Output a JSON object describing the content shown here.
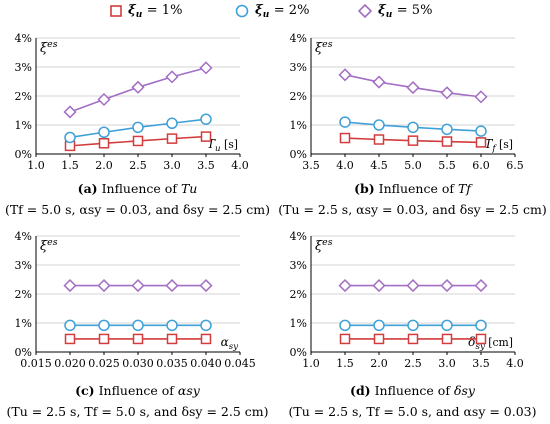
{
  "legend": [
    {
      "symbol": "ξ",
      "sub": "u",
      "label": "= 1%",
      "color": "#d23c3c",
      "marker": "square"
    },
    {
      "symbol": "ξ",
      "sub": "u",
      "label": "= 2%",
      "color": "#3fa0d8",
      "marker": "circle"
    },
    {
      "symbol": "ξ",
      "sub": "u",
      "label": "= 5%",
      "color": "#a36ec4",
      "marker": "diamond"
    }
  ],
  "chart_data": [
    {
      "type": "line",
      "ylabel": "ξes",
      "xlabel": "Tu [s]",
      "xlim": [
        1.0,
        4.0
      ],
      "xticks": [
        "1.0",
        "1.5",
        "2.0",
        "2.5",
        "3.0",
        "3.5",
        "4.0"
      ],
      "ylim": [
        0,
        4
      ],
      "yticks": [
        "0%",
        "1%",
        "2%",
        "3%",
        "4%"
      ],
      "x": [
        1.5,
        2.0,
        2.5,
        3.0,
        3.5
      ],
      "series": [
        {
          "name": "ξu = 1%",
          "values": [
            0.28,
            0.37,
            0.45,
            0.53,
            0.6
          ]
        },
        {
          "name": "ξu = 2%",
          "values": [
            0.57,
            0.75,
            0.92,
            1.06,
            1.2
          ]
        },
        {
          "name": "ξu = 5%",
          "values": [
            1.45,
            1.88,
            2.3,
            2.66,
            2.97
          ]
        }
      ],
      "caption_title": [
        "(a)",
        "Influence of",
        "Tu"
      ],
      "caption_params": "(Tf = 5.0 s,  αsy = 0.03, and  δsy = 2.5 cm)"
    },
    {
      "type": "line",
      "ylabel": "ξes",
      "xlabel": "Tf [s]",
      "xlim": [
        3.5,
        6.5
      ],
      "xticks": [
        "3.5",
        "4.0",
        "4.5",
        "5.0",
        "5.5",
        "6.0",
        "6.5"
      ],
      "ylim": [
        0,
        4
      ],
      "yticks": [
        "0%",
        "1%",
        "2%",
        "3%",
        "4%"
      ],
      "x": [
        4.0,
        4.5,
        5.0,
        5.5,
        6.0
      ],
      "series": [
        {
          "name": "ξu = 1%",
          "values": [
            0.55,
            0.5,
            0.46,
            0.43,
            0.4
          ]
        },
        {
          "name": "ξu = 2%",
          "values": [
            1.1,
            1.0,
            0.92,
            0.85,
            0.79
          ]
        },
        {
          "name": "ξu = 5%",
          "values": [
            2.73,
            2.48,
            2.29,
            2.11,
            1.97
          ]
        }
      ],
      "caption_title": [
        "(b)",
        "Influence of",
        "Tf"
      ],
      "caption_params": "(Tu = 2.5 s,  αsy = 0.03, and  δsy = 2.5 cm)"
    },
    {
      "type": "line",
      "ylabel": "ξes",
      "xlabel": "αsy",
      "xlim": [
        0.015,
        0.045
      ],
      "xticks": [
        "0.015",
        "0.020",
        "0.025",
        "0.030",
        "0.035",
        "0.040",
        "0.045"
      ],
      "ylim": [
        0,
        4
      ],
      "yticks": [
        "0%",
        "1%",
        "2%",
        "3%",
        "4%"
      ],
      "x": [
        0.02,
        0.025,
        0.03,
        0.035,
        0.04
      ],
      "series": [
        {
          "name": "ξu = 1%",
          "values": [
            0.45,
            0.45,
            0.45,
            0.45,
            0.45
          ]
        },
        {
          "name": "ξu = 2%",
          "values": [
            0.92,
            0.92,
            0.92,
            0.92,
            0.92
          ]
        },
        {
          "name": "ξu = 5%",
          "values": [
            2.29,
            2.29,
            2.29,
            2.29,
            2.29
          ]
        }
      ],
      "caption_title": [
        "(c)",
        "Influence of",
        "αsy"
      ],
      "caption_params": "(Tu = 2.5 s,  Tf = 5.0 s, and  δsy = 2.5 cm)"
    },
    {
      "type": "line",
      "ylabel": "ξes",
      "xlabel": "δsy [cm]",
      "xlim": [
        1.0,
        4.0
      ],
      "xticks": [
        "1.0",
        "1.5",
        "2.0",
        "2.5",
        "3.0",
        "3.5",
        "4.0"
      ],
      "ylim": [
        0,
        4
      ],
      "yticks": [
        "0%",
        "1%",
        "2%",
        "3%",
        "4%"
      ],
      "x": [
        1.5,
        2.0,
        2.5,
        3.0,
        3.5
      ],
      "series": [
        {
          "name": "ξu = 1%",
          "values": [
            0.45,
            0.45,
            0.45,
            0.45,
            0.45
          ]
        },
        {
          "name": "ξu = 2%",
          "values": [
            0.92,
            0.92,
            0.92,
            0.92,
            0.92
          ]
        },
        {
          "name": "ξu = 5%",
          "values": [
            2.29,
            2.29,
            2.29,
            2.29,
            2.29
          ]
        }
      ],
      "caption_title": [
        "(d)",
        "Influence of",
        "δsy"
      ],
      "caption_params": "(Tu = 2.5 s,  Tf = 5.0 s, and  αsy = 0.03)"
    }
  ]
}
